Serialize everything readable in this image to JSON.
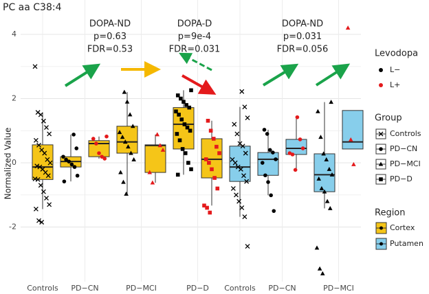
{
  "chart_data": {
    "type": "box",
    "title": "PC aa C38:4",
    "y_label": "Normalized Value",
    "ylim": [
      -3.7,
      5.07
    ],
    "yticks": [
      -2,
      0,
      2,
      4
    ],
    "grid": true,
    "groups": [
      {
        "label": "Controls",
        "boxes": [
          {
            "group": "Controls",
            "levodopa": "L−",
            "region": "Cortex",
            "q1": -0.52,
            "median": -0.13,
            "q3": 0.56,
            "whislo": -1.44,
            "whishi": 1.57,
            "points": [
              3.0,
              1.57,
              1.5,
              1.3,
              1.1,
              0.9,
              0.7,
              0.55,
              0.4,
              0.3,
              0.1,
              0.0,
              -0.1,
              -0.13,
              -0.2,
              -0.3,
              -0.4,
              -0.5,
              -0.52,
              -0.7,
              -0.9,
              -1.1,
              -1.3,
              -1.44,
              -1.8,
              -1.85
            ]
          }
        ]
      },
      {
        "label": "PD−CN",
        "boxes": [
          {
            "group": "PD−CN",
            "levodopa": "L−",
            "region": "Cortex",
            "q1": -0.13,
            "median": 0.04,
            "q3": 0.19,
            "whislo": -0.58,
            "whishi": 0.88,
            "points": [
              0.88,
              0.45,
              0.19,
              0.1,
              0.04,
              -0.05,
              -0.13,
              -0.4,
              -0.58
            ]
          },
          {
            "group": "PD−CN",
            "levodopa": "L+",
            "region": "Cortex",
            "q1": 0.19,
            "median": 0.6,
            "q3": 0.69,
            "whislo": 0.13,
            "whishi": 0.82,
            "points": [
              0.82,
              0.75,
              0.6,
              0.3,
              0.19,
              0.13
            ]
          }
        ]
      },
      {
        "label": "PD−MCI",
        "boxes": [
          {
            "group": "PD−MCI",
            "levodopa": "L−",
            "region": "Cortex",
            "q1": 0.3,
            "median": 0.65,
            "q3": 1.14,
            "whislo": -0.97,
            "whishi": 2.2,
            "points": [
              2.2,
              1.9,
              1.5,
              1.14,
              0.95,
              0.8,
              0.65,
              0.5,
              0.3,
              0.1,
              -0.3,
              -0.6,
              -0.97
            ]
          },
          {
            "group": "PD−MCI",
            "levodopa": "L+",
            "region": "Cortex",
            "q1": -0.3,
            "median": 0.54,
            "q3": 0.56,
            "whislo": -0.62,
            "whishi": 0.88,
            "points": [
              0.88,
              0.54,
              0.4,
              -0.3,
              -0.62
            ]
          }
        ]
      },
      {
        "label": "PD−D",
        "boxes": [
          {
            "group": "PD−D",
            "levodopa": "L−",
            "region": "Cortex",
            "q1": 0.43,
            "median": 1.2,
            "q3": 1.72,
            "whislo": -0.37,
            "whishi": 2.26,
            "points": [
              2.26,
              2.1,
              2.0,
              1.9,
              1.8,
              1.72,
              1.6,
              1.5,
              1.35,
              1.2,
              1.1,
              1.0,
              0.9,
              0.7,
              0.43,
              0.3,
              0.0,
              -0.2,
              -0.37
            ]
          },
          {
            "group": "PD−D",
            "levodopa": "L+",
            "region": "Cortex",
            "q1": -0.47,
            "median": 0.11,
            "q3": 0.75,
            "whislo": -1.33,
            "whishi": 1.31,
            "points": [
              1.31,
              1.0,
              0.75,
              0.5,
              0.3,
              0.11,
              0.0,
              -0.2,
              -0.47,
              -0.8,
              -1.33,
              -1.4,
              -1.55
            ]
          }
        ]
      },
      {
        "label": "Controls",
        "boxes": [
          {
            "group": "Controls",
            "levodopa": "L−",
            "region": "Putamen",
            "q1": -0.58,
            "median": -0.13,
            "q3": 0.52,
            "whislo": -1.68,
            "whishi": 1.74,
            "points": [
              2.22,
              1.74,
              1.4,
              1.2,
              0.9,
              0.6,
              0.52,
              0.3,
              0.1,
              0.0,
              -0.13,
              -0.2,
              -0.4,
              -0.58,
              -0.8,
              -1.0,
              -1.2,
              -1.4,
              -1.68,
              -2.6
            ]
          }
        ]
      },
      {
        "label": "PD−CN",
        "boxes": [
          {
            "group": "PD−CN",
            "levodopa": "L−",
            "region": "Putamen",
            "q1": -0.39,
            "median": 0.11,
            "q3": 0.32,
            "whislo": -1.01,
            "whishi": 1.03,
            "points": [
              1.03,
              0.9,
              0.4,
              0.32,
              0.11,
              0.0,
              -0.39,
              -0.6,
              -1.01,
              -1.5
            ]
          },
          {
            "group": "PD−CN",
            "levodopa": "L+",
            "region": "Putamen",
            "q1": 0.26,
            "median": 0.45,
            "q3": 0.73,
            "whislo": -0.22,
            "whishi": 1.42,
            "points": [
              1.42,
              0.73,
              0.45,
              0.3,
              0.26,
              -0.22
            ]
          }
        ]
      },
      {
        "label": "PD−MCI",
        "boxes": [
          {
            "group": "PD−MCI",
            "levodopa": "L−",
            "region": "Putamen",
            "q1": -0.9,
            "median": -0.37,
            "q3": 0.28,
            "whislo": -1.42,
            "whishi": 1.89,
            "points": [
              1.89,
              1.6,
              0.8,
              0.28,
              0.1,
              -0.2,
              -0.37,
              -0.5,
              -0.8,
              -0.9,
              -1.2,
              -1.42,
              -2.65,
              -3.3,
              -3.45
            ]
          },
          {
            "group": "PD−MCI",
            "levodopa": "L+",
            "region": "Putamen",
            "q1": 0.43,
            "median": 0.65,
            "q3": 1.63,
            "whislo": 0.43,
            "whishi": 1.63,
            "points": [
              4.2,
              0.72,
              -0.05
            ]
          }
        ]
      }
    ],
    "annotations": [
      {
        "lines": [
          "DOPA-ND",
          "p=0.63",
          "FDR=0.53"
        ]
      },
      {
        "lines": [
          "DOPA-D",
          "p=9e-4",
          "FDR=0.031"
        ]
      },
      {
        "lines": [
          "DOPA-ND",
          "p=0.031",
          "FDR=0.056"
        ]
      }
    ],
    "legend_levodopa": {
      "title": "Levodopa",
      "items": [
        {
          "name": "L−",
          "color": "#000000"
        },
        {
          "name": "L+",
          "color": "#e41a1c"
        }
      ]
    },
    "legend_group": {
      "title": "Group",
      "items": [
        "Controls",
        "PD−CN",
        "PD−MCI",
        "PD−D"
      ]
    },
    "legend_region": {
      "title": "Region",
      "items": [
        {
          "name": "Cortex",
          "color": "#f5c518"
        },
        {
          "name": "Putamen",
          "color": "#87ceeb"
        }
      ]
    }
  }
}
